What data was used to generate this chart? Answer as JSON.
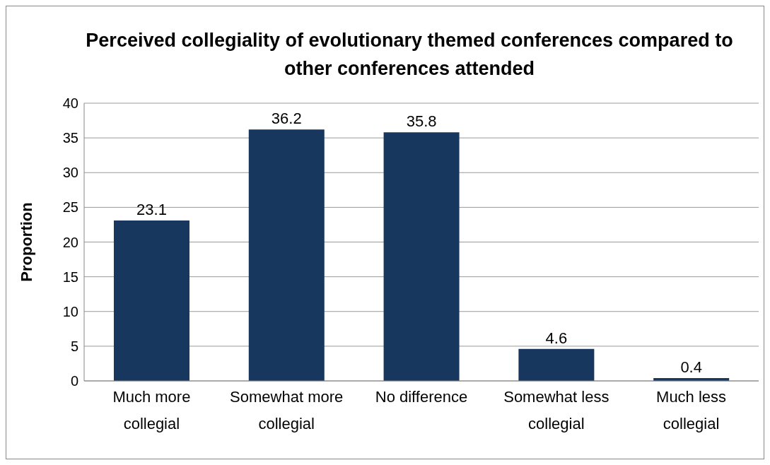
{
  "chart_data": {
    "type": "bar",
    "title": "Perceived collegiality of evolutionary themed conferences compared to other conferences attended",
    "ylabel": "Proportion",
    "categories": [
      "Much more collegial",
      "Somewhat more collegial",
      "No difference",
      "Somewhat less collegial",
      "Much less collegial"
    ],
    "values": [
      23.1,
      36.2,
      35.8,
      4.6,
      0.4
    ],
    "color": "#17375e",
    "ylim": [
      0,
      40
    ],
    "yticks": [
      0,
      5,
      10,
      15,
      20,
      25,
      30,
      35,
      40
    ],
    "grid": "y",
    "data_labels": true,
    "legend": false
  }
}
